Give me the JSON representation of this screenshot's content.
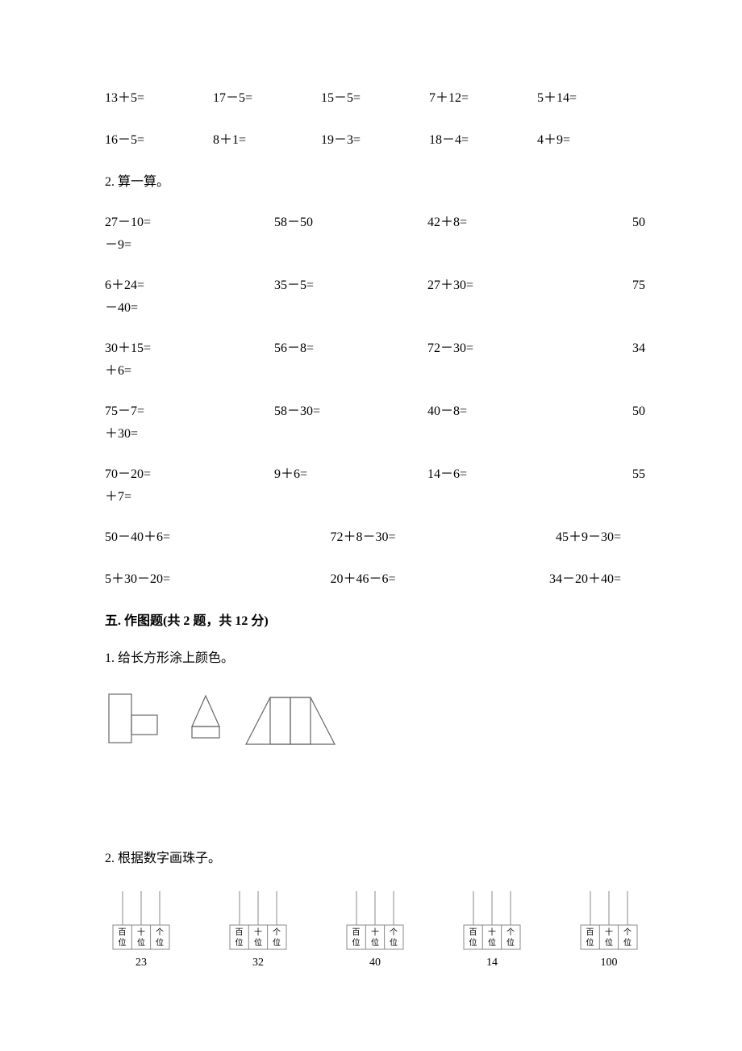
{
  "row1": [
    "13＋5=",
    "17－5=",
    "15－5=",
    "7＋12=",
    "5＋14="
  ],
  "row2": [
    "16－5=",
    "8＋1=",
    "19－3=",
    "18－4=",
    "4＋9="
  ],
  "section2_label": "2. 算一算。",
  "calc_rows": [
    {
      "c1": "27－10=",
      "c2": "58－50",
      "c3": "42＋8=",
      "c4": "50",
      "sub": "－9="
    },
    {
      "c1": "6＋24=",
      "c2": "35－5=",
      "c3": "27＋30=",
      "c4": "75",
      "sub": "－40="
    },
    {
      "c1": "30＋15=",
      "c2": "56－8=",
      "c3": "72－30=",
      "c4": "34",
      "sub": "＋6="
    },
    {
      "c1": "75－7=",
      "c2": "58－30=",
      "c3": "40－8=",
      "c4": "50",
      "sub": "＋30="
    },
    {
      "c1": "70－20=",
      "c2": "9＋6=",
      "c3": "14－6=",
      "c4": "55",
      "sub": "＋7="
    }
  ],
  "tri_rows": [
    [
      "50－40＋6=",
      "72＋8－30=",
      "45＋9－30="
    ],
    [
      "5＋30－20=",
      "20＋46－6=",
      "34－20＋40="
    ]
  ],
  "section5_heading": "五. 作图题(共 2 题，共 12 分)",
  "q1_label": "1. 给长方形涂上颜色。",
  "q2_label": "2. 根据数字画珠子。",
  "shapes": {
    "stroke": "#666666",
    "stroke_width": 1.2
  },
  "abacus": {
    "stroke": "#888888",
    "stroke_width": 1,
    "cell_border": "#888888",
    "labels": [
      "百",
      "十",
      "个"
    ],
    "sublabels": [
      "位",
      "位",
      "位"
    ],
    "items": [
      {
        "num": "23"
      },
      {
        "num": "32"
      },
      {
        "num": "40"
      },
      {
        "num": "14"
      },
      {
        "num": "100"
      }
    ]
  }
}
